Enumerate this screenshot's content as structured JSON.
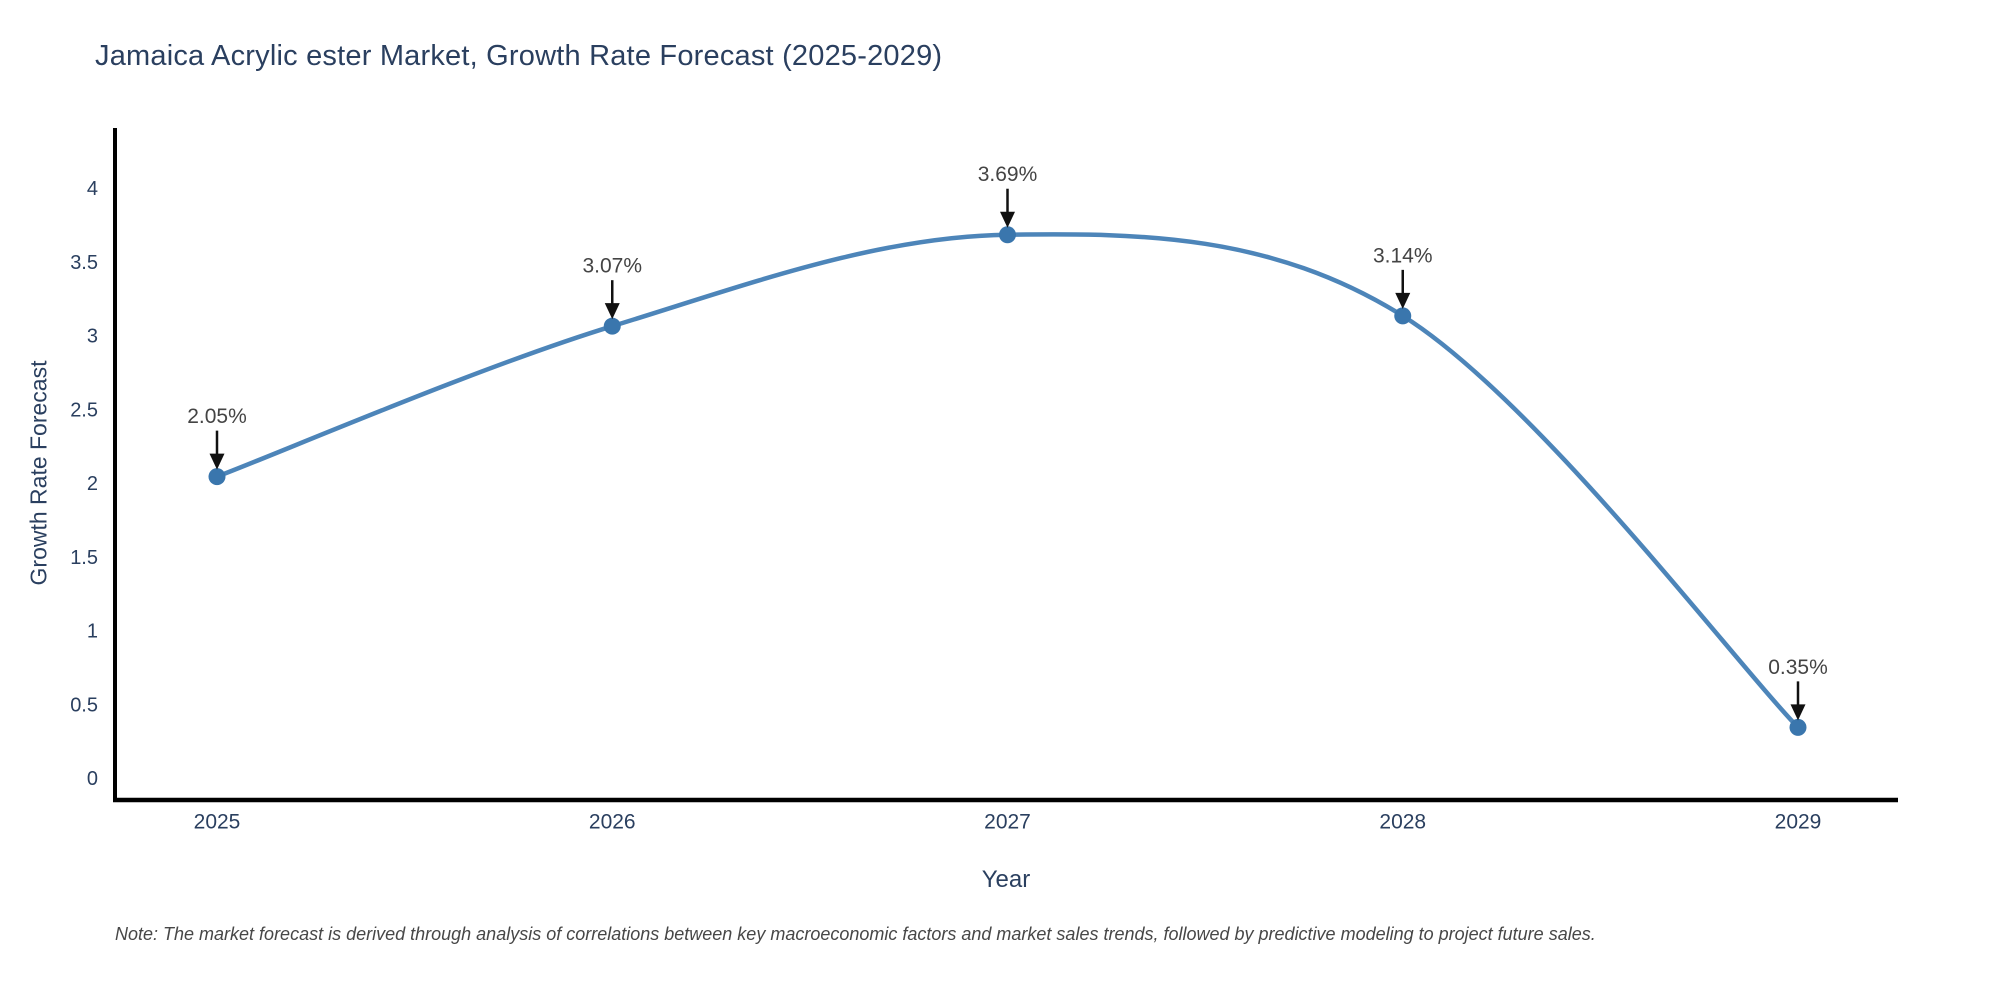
{
  "title": "Jamaica Acrylic ester Market, Growth Rate Forecast (2025-2029)",
  "footnote": "Note: The market forecast is derived through analysis of correlations between key macroeconomic factors and market sales trends, followed by predictive modeling to project future sales.",
  "chart_data": {
    "type": "line",
    "title": "Jamaica Acrylic ester Market, Growth Rate Forecast (2025-2029)",
    "line_shape": "spline",
    "x": [
      2025,
      2026,
      2027,
      2028,
      2029
    ],
    "series": [
      {
        "name": "Growth Rate Forecast",
        "values": [
          2.05,
          3.07,
          3.69,
          3.14,
          0.35
        ]
      }
    ],
    "point_labels": [
      "2.05%",
      "3.07%",
      "3.69%",
      "3.14%",
      "0.35%"
    ],
    "xlabel": "Year",
    "ylabel": "Growth Rate Forecast",
    "xtick_labels": [
      "2025",
      "2026",
      "2027",
      "2028",
      "2029"
    ],
    "ytick_values": [
      0,
      0.5,
      1,
      1.5,
      2,
      2.5,
      3,
      3.5,
      4
    ],
    "ytick_labels": [
      "0",
      "0.5",
      "1",
      "1.5",
      "2",
      "2.5",
      "3",
      "3.5",
      "4"
    ],
    "ylim": [
      0,
      4
    ],
    "grid": false,
    "legend": "none",
    "annotation_arrows": "down",
    "colors": {
      "line": "#4d85b9",
      "marker": "#3a76ad",
      "axis_line": "#000000",
      "axis_text": "#2a3f5f",
      "annotation_text": "#444444",
      "arrow": "#111111",
      "background": "#ffffff"
    }
  }
}
